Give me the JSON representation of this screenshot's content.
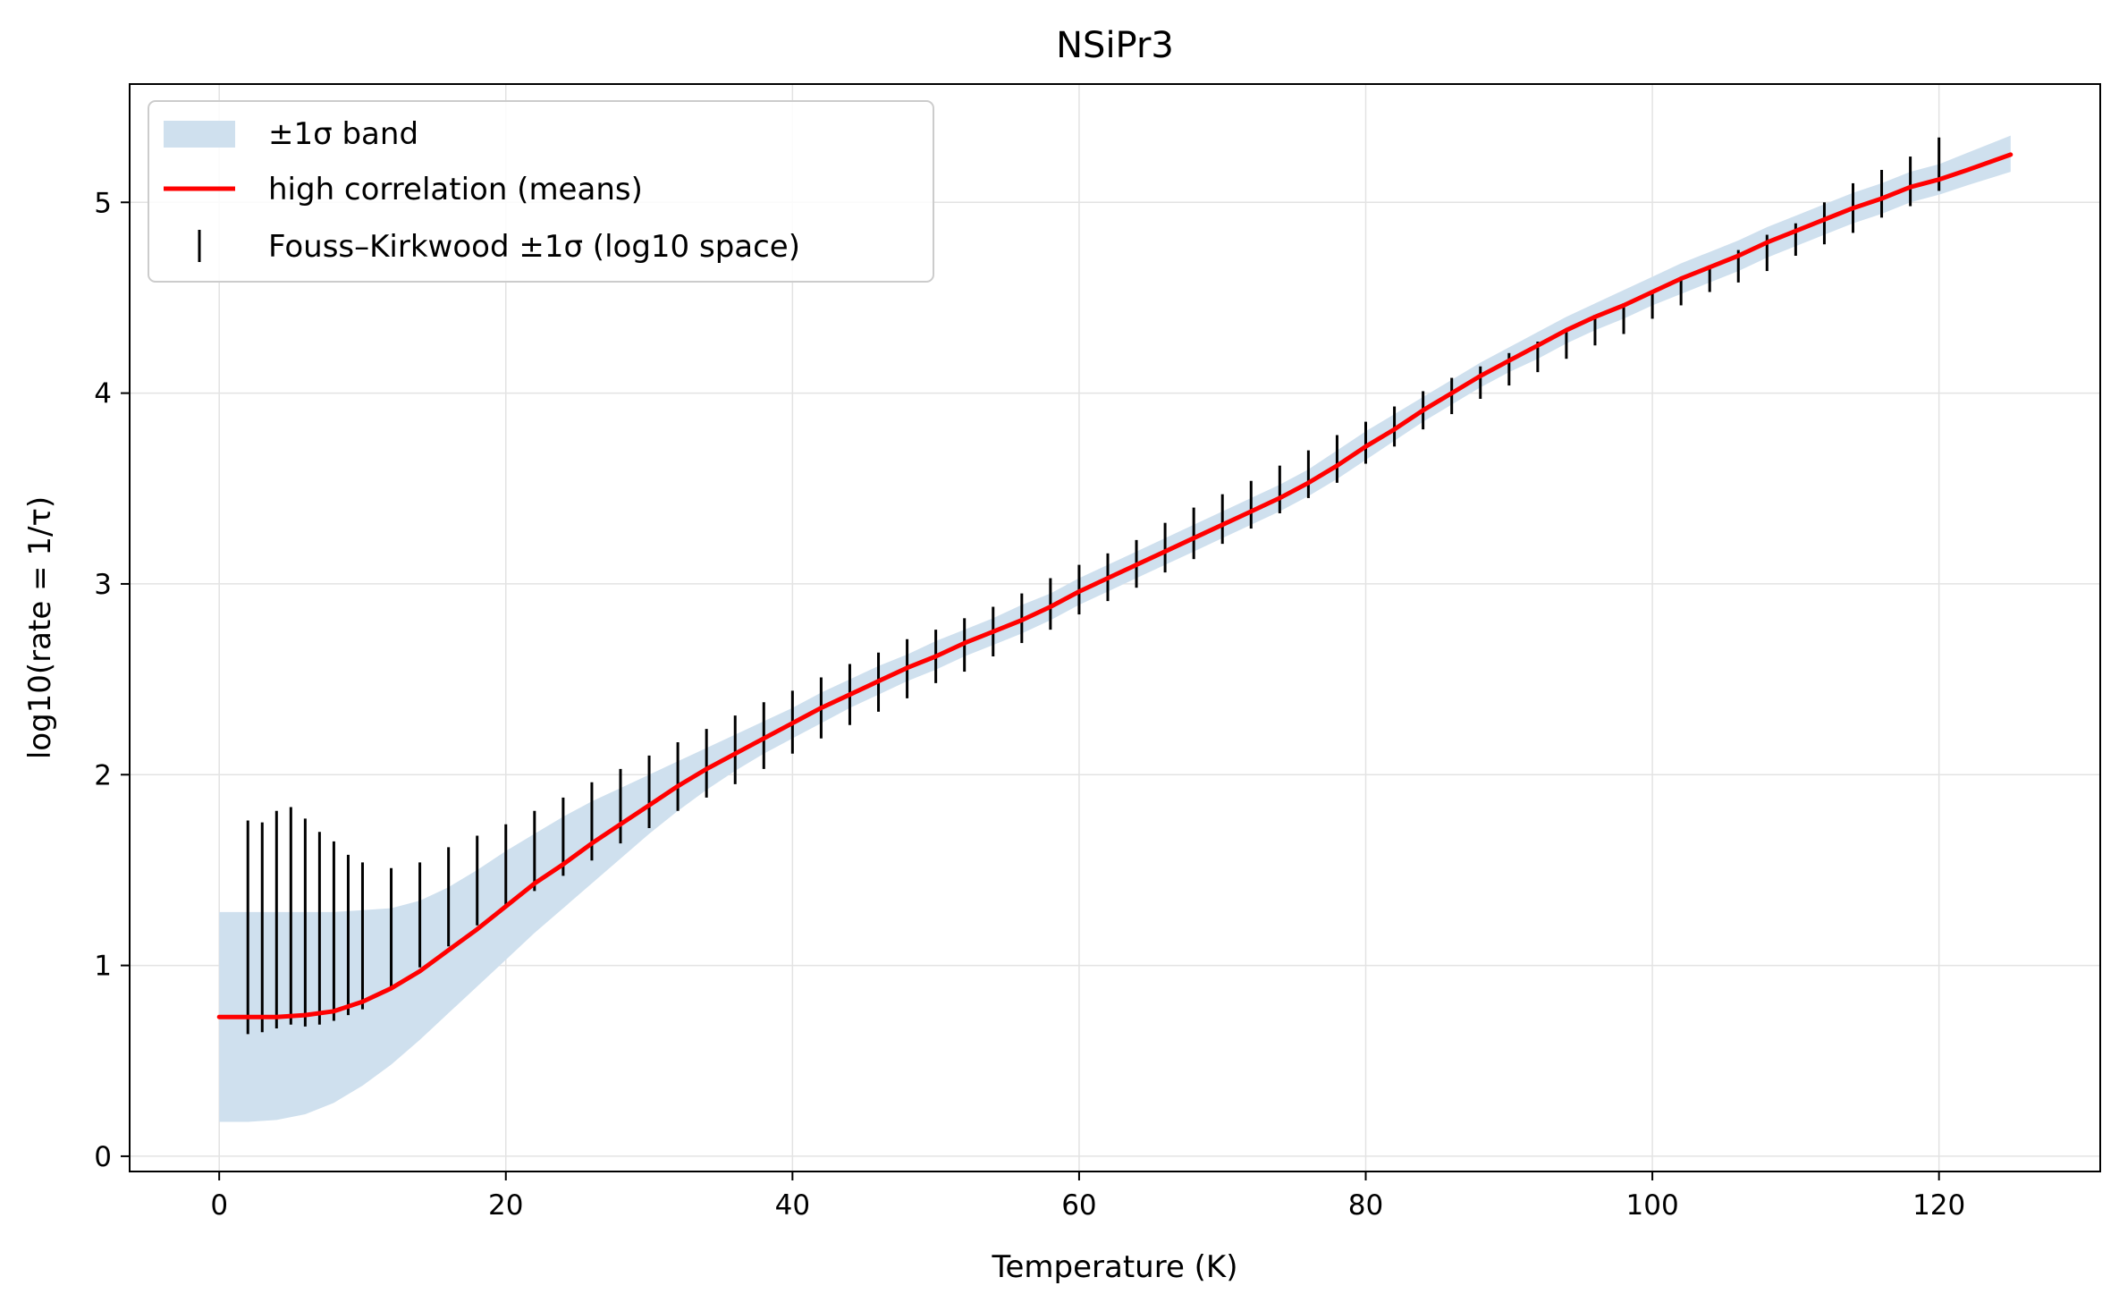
{
  "chart_data": {
    "type": "line",
    "title": "NSiPr3",
    "xlabel": "Temperature (K)",
    "ylabel": "log10(rate = 1/τ)",
    "xlim": [
      -6.25,
      131.25
    ],
    "ylim": [
      -0.08,
      5.62
    ],
    "xticks": [
      0,
      20,
      40,
      60,
      80,
      100,
      120
    ],
    "yticks": [
      0,
      1,
      2,
      3,
      4,
      5
    ],
    "grid": true,
    "legend_position": "top-left",
    "legend": [
      {
        "label": "±1σ band",
        "kind": "band"
      },
      {
        "label": "high correlation (means)",
        "kind": "line"
      },
      {
        "label": "Fouss–Kirkwood ±1σ (log10 space)",
        "kind": "errorbar"
      }
    ],
    "colors": {
      "band": "#cfe0ee",
      "line": "#ff0000",
      "errorbar": "#000000"
    },
    "mean_curve": {
      "x": [
        0,
        2,
        4,
        6,
        8,
        10,
        12,
        14,
        16,
        18,
        20,
        22,
        24,
        26,
        28,
        30,
        32,
        34,
        36,
        38,
        40,
        42,
        44,
        46,
        48,
        50,
        52,
        54,
        56,
        58,
        60,
        62,
        64,
        66,
        68,
        70,
        72,
        74,
        76,
        78,
        80,
        82,
        84,
        86,
        88,
        90,
        92,
        94,
        96,
        98,
        100,
        102,
        104,
        106,
        108,
        110,
        112,
        114,
        116,
        118,
        120,
        122,
        125
      ],
      "y": [
        0.73,
        0.73,
        0.73,
        0.74,
        0.76,
        0.81,
        0.88,
        0.97,
        1.08,
        1.19,
        1.31,
        1.43,
        1.53,
        1.64,
        1.74,
        1.84,
        1.94,
        2.03,
        2.11,
        2.19,
        2.27,
        2.35,
        2.42,
        2.49,
        2.56,
        2.62,
        2.69,
        2.75,
        2.81,
        2.88,
        2.96,
        3.03,
        3.1,
        3.17,
        3.24,
        3.31,
        3.38,
        3.45,
        3.53,
        3.62,
        3.72,
        3.81,
        3.91,
        4.0,
        4.09,
        4.17,
        4.25,
        4.33,
        4.4,
        4.46,
        4.53,
        4.6,
        4.66,
        4.72,
        4.79,
        4.85,
        4.91,
        4.97,
        5.02,
        5.08,
        5.12,
        5.17,
        5.25
      ]
    },
    "band": {
      "x": [
        0,
        2,
        4,
        6,
        8,
        10,
        12,
        14,
        16,
        18,
        20,
        22,
        24,
        26,
        28,
        30,
        32,
        34,
        36,
        38,
        40,
        42,
        44,
        46,
        48,
        50,
        52,
        54,
        56,
        58,
        60,
        62,
        64,
        66,
        68,
        70,
        72,
        74,
        76,
        78,
        80,
        82,
        84,
        86,
        88,
        90,
        92,
        94,
        96,
        98,
        100,
        102,
        104,
        106,
        108,
        110,
        112,
        114,
        116,
        118,
        120,
        122,
        125
      ],
      "lower": [
        0.18,
        0.18,
        0.19,
        0.22,
        0.28,
        0.37,
        0.48,
        0.61,
        0.75,
        0.89,
        1.03,
        1.17,
        1.3,
        1.43,
        1.56,
        1.69,
        1.81,
        1.92,
        2.02,
        2.11,
        2.19,
        2.27,
        2.35,
        2.42,
        2.49,
        2.55,
        2.62,
        2.68,
        2.74,
        2.81,
        2.89,
        2.96,
        3.03,
        3.1,
        3.17,
        3.24,
        3.31,
        3.38,
        3.46,
        3.55,
        3.65,
        3.75,
        3.85,
        3.94,
        4.03,
        4.11,
        4.18,
        4.26,
        4.33,
        4.39,
        4.46,
        4.52,
        4.58,
        4.64,
        4.71,
        4.77,
        4.83,
        4.89,
        4.94,
        5.0,
        5.04,
        5.09,
        5.16
      ],
      "upper": [
        1.28,
        1.28,
        1.28,
        1.28,
        1.28,
        1.29,
        1.3,
        1.34,
        1.41,
        1.5,
        1.6,
        1.69,
        1.78,
        1.86,
        1.93,
        2.0,
        2.07,
        2.14,
        2.21,
        2.28,
        2.35,
        2.43,
        2.5,
        2.57,
        2.63,
        2.7,
        2.76,
        2.82,
        2.89,
        2.95,
        3.03,
        3.1,
        3.17,
        3.24,
        3.31,
        3.38,
        3.45,
        3.52,
        3.6,
        3.7,
        3.8,
        3.89,
        3.98,
        4.07,
        4.16,
        4.24,
        4.32,
        4.4,
        4.47,
        4.54,
        4.61,
        4.68,
        4.74,
        4.8,
        4.87,
        4.93,
        4.99,
        5.05,
        5.1,
        5.16,
        5.2,
        5.26,
        5.35
      ]
    },
    "errorbars": {
      "x": [
        2,
        3,
        4,
        5,
        6,
        7,
        8,
        9,
        10,
        12,
        14,
        16,
        18,
        20,
        22,
        24,
        26,
        28,
        30,
        32,
        34,
        36,
        38,
        40,
        42,
        44,
        46,
        48,
        50,
        52,
        54,
        56,
        58,
        60,
        62,
        64,
        66,
        68,
        70,
        72,
        74,
        76,
        78,
        80,
        82,
        84,
        86,
        88,
        90,
        92,
        94,
        96,
        98,
        100,
        102,
        104,
        106,
        108,
        110,
        112,
        114,
        116,
        118,
        120
      ],
      "low": [
        0.64,
        0.65,
        0.67,
        0.69,
        0.68,
        0.69,
        0.71,
        0.74,
        0.77,
        0.88,
        0.99,
        1.1,
        1.21,
        1.31,
        1.39,
        1.47,
        1.55,
        1.64,
        1.72,
        1.81,
        1.88,
        1.95,
        2.03,
        2.11,
        2.19,
        2.26,
        2.33,
        2.4,
        2.48,
        2.54,
        2.62,
        2.69,
        2.76,
        2.84,
        2.91,
        2.98,
        3.06,
        3.13,
        3.21,
        3.29,
        3.37,
        3.45,
        3.53,
        3.63,
        3.72,
        3.81,
        3.89,
        3.97,
        4.04,
        4.11,
        4.18,
        4.25,
        4.31,
        4.39,
        4.46,
        4.53,
        4.58,
        4.64,
        4.72,
        4.78,
        4.84,
        4.92,
        4.98,
        5.06
      ],
      "high": [
        1.76,
        1.75,
        1.81,
        1.83,
        1.77,
        1.7,
        1.65,
        1.58,
        1.54,
        1.51,
        1.54,
        1.62,
        1.68,
        1.74,
        1.81,
        1.88,
        1.96,
        2.03,
        2.1,
        2.17,
        2.24,
        2.31,
        2.38,
        2.44,
        2.51,
        2.58,
        2.64,
        2.71,
        2.76,
        2.82,
        2.88,
        2.95,
        3.03,
        3.1,
        3.16,
        3.23,
        3.32,
        3.4,
        3.47,
        3.54,
        3.62,
        3.7,
        3.78,
        3.85,
        3.93,
        4.01,
        4.08,
        4.14,
        4.21,
        4.27,
        4.34,
        4.41,
        4.47,
        4.53,
        4.61,
        4.67,
        4.75,
        4.83,
        4.89,
        5.0,
        5.1,
        5.17,
        5.24,
        5.34
      ]
    }
  }
}
